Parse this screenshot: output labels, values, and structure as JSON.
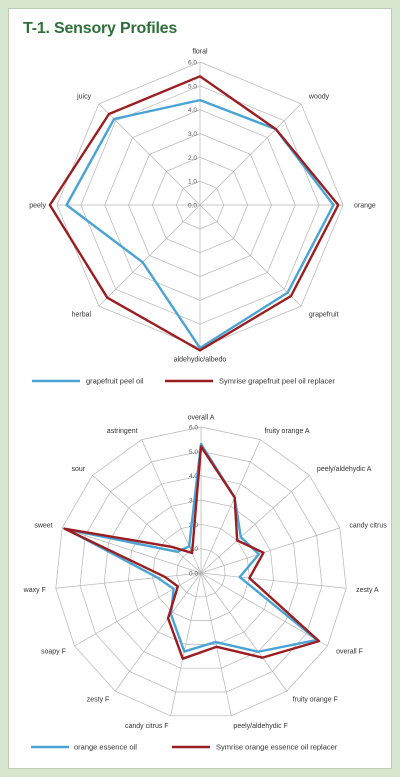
{
  "title": "T-1. Sensory Profiles",
  "colors": {
    "series1": "#4aa3d5",
    "series2": "#9b1d20",
    "grid": "#b5b5b5",
    "title": "#2f6f3a"
  },
  "chart_data": [
    {
      "type": "radar",
      "ylim": [
        0,
        6
      ],
      "ticks": [
        "0.0",
        "1.0",
        "2.0",
        "3.0",
        "4.0",
        "5.0",
        "6.0"
      ],
      "categories": [
        "floral",
        "woody",
        "orange",
        "grapefruit",
        "aldehydic/albedo",
        "herbal",
        "peely",
        "juicy"
      ],
      "series": [
        {
          "name": "grapefruit peel oil",
          "values": [
            4.4,
            4.5,
            5.6,
            5.2,
            6.0,
            3.4,
            5.6,
            5.1
          ]
        },
        {
          "name": "Symrise grapefruit peel oil replacer",
          "values": [
            5.4,
            4.5,
            5.8,
            5.4,
            6.1,
            5.5,
            6.3,
            5.4
          ]
        }
      ]
    },
    {
      "type": "radar",
      "ylim": [
        0,
        6
      ],
      "ticks": [
        "0.0",
        "1.0",
        "2.0",
        "3.0",
        "4.0",
        "5.0",
        "6.0"
      ],
      "categories": [
        "overall A",
        "fruity orange A",
        "peely/aldehydic A",
        "candy citrus",
        "zesty A",
        "overall F",
        "fruity orange F",
        "peely/aldehydic F",
        "candy citrus F",
        "zesty F",
        "soapy F",
        "waxy F",
        "sweet",
        "sour",
        "astringent"
      ],
      "series": [
        {
          "name": "orange essence oil",
          "values": [
            5.3,
            3.4,
            2.2,
            2.5,
            1.6,
            5.5,
            4.0,
            2.9,
            3.3,
            2.1,
            1.3,
            1.8,
            5.8,
            1.3,
            1.2
          ]
        },
        {
          "name": "Symrise orange essence oil replacer",
          "values": [
            5.2,
            3.4,
            2.0,
            2.7,
            2.0,
            5.6,
            4.3,
            3.1,
            3.6,
            2.3,
            1.1,
            1.5,
            5.9,
            1.6,
            0.9
          ]
        }
      ]
    }
  ]
}
